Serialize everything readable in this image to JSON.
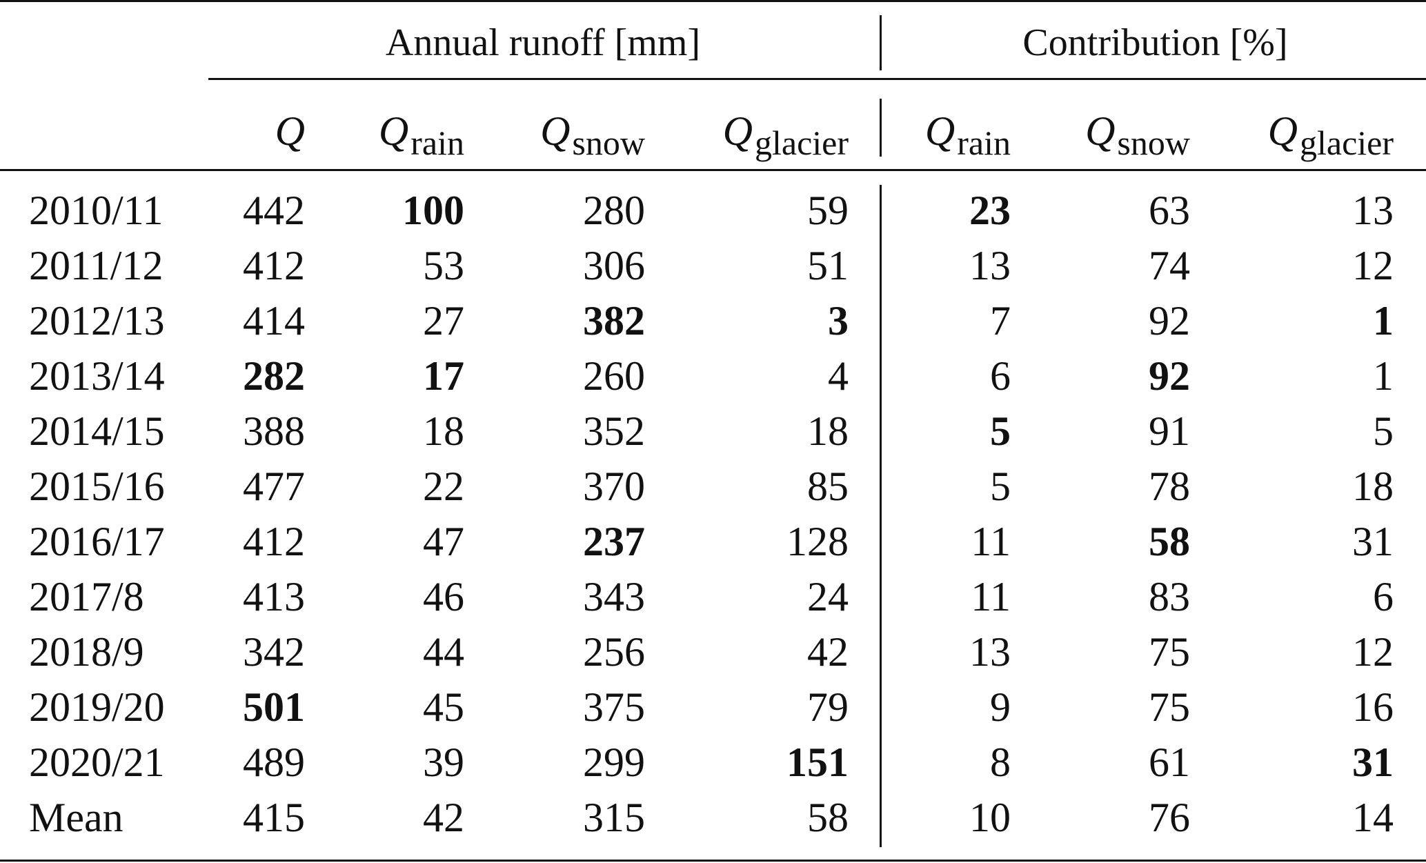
{
  "table": {
    "group_headers": {
      "runoff": "Annual runoff [mm]",
      "contribution": "Contribution [%]"
    },
    "column_headers": [
      {
        "symbol": "Q",
        "sub": ""
      },
      {
        "symbol": "Q",
        "sub": "rain"
      },
      {
        "symbol": "Q",
        "sub": "snow"
      },
      {
        "symbol": "Q",
        "sub": "glacier"
      },
      {
        "symbol": "Q",
        "sub": "rain"
      },
      {
        "symbol": "Q",
        "sub": "snow"
      },
      {
        "symbol": "Q",
        "sub": "glacier"
      }
    ],
    "rows": [
      {
        "label": "2010/11",
        "values": [
          "442",
          "100",
          "280",
          "59",
          "23",
          "63",
          "13"
        ],
        "bold": [
          false,
          true,
          false,
          false,
          true,
          false,
          false
        ]
      },
      {
        "label": "2011/12",
        "values": [
          "412",
          "53",
          "306",
          "51",
          "13",
          "74",
          "12"
        ],
        "bold": [
          false,
          false,
          false,
          false,
          false,
          false,
          false
        ]
      },
      {
        "label": "2012/13",
        "values": [
          "414",
          "27",
          "382",
          "3",
          "7",
          "92",
          "1"
        ],
        "bold": [
          false,
          false,
          true,
          true,
          false,
          false,
          true
        ]
      },
      {
        "label": "2013/14",
        "values": [
          "282",
          "17",
          "260",
          "4",
          "6",
          "92",
          "1"
        ],
        "bold": [
          true,
          true,
          false,
          false,
          false,
          true,
          false
        ]
      },
      {
        "label": "2014/15",
        "values": [
          "388",
          "18",
          "352",
          "18",
          "5",
          "91",
          "5"
        ],
        "bold": [
          false,
          false,
          false,
          false,
          true,
          false,
          false
        ]
      },
      {
        "label": "2015/16",
        "values": [
          "477",
          "22",
          "370",
          "85",
          "5",
          "78",
          "18"
        ],
        "bold": [
          false,
          false,
          false,
          false,
          false,
          false,
          false
        ]
      },
      {
        "label": "2016/17",
        "values": [
          "412",
          "47",
          "237",
          "128",
          "11",
          "58",
          "31"
        ],
        "bold": [
          false,
          false,
          true,
          false,
          false,
          true,
          false
        ]
      },
      {
        "label": "2017/8",
        "values": [
          "413",
          "46",
          "343",
          "24",
          "11",
          "83",
          "6"
        ],
        "bold": [
          false,
          false,
          false,
          false,
          false,
          false,
          false
        ]
      },
      {
        "label": "2018/9",
        "values": [
          "342",
          "44",
          "256",
          "42",
          "13",
          "75",
          "12"
        ],
        "bold": [
          false,
          false,
          false,
          false,
          false,
          false,
          false
        ]
      },
      {
        "label": "2019/20",
        "values": [
          "501",
          "45",
          "375",
          "79",
          "9",
          "75",
          "16"
        ],
        "bold": [
          true,
          false,
          false,
          false,
          false,
          false,
          false
        ]
      },
      {
        "label": "2020/21",
        "values": [
          "489",
          "39",
          "299",
          "151",
          "8",
          "61",
          "31"
        ],
        "bold": [
          false,
          false,
          false,
          true,
          false,
          false,
          true
        ]
      },
      {
        "label": "Mean",
        "values": [
          "415",
          "42",
          "315",
          "58",
          "10",
          "76",
          "14"
        ],
        "bold": [
          false,
          false,
          false,
          false,
          false,
          false,
          false
        ]
      }
    ]
  }
}
